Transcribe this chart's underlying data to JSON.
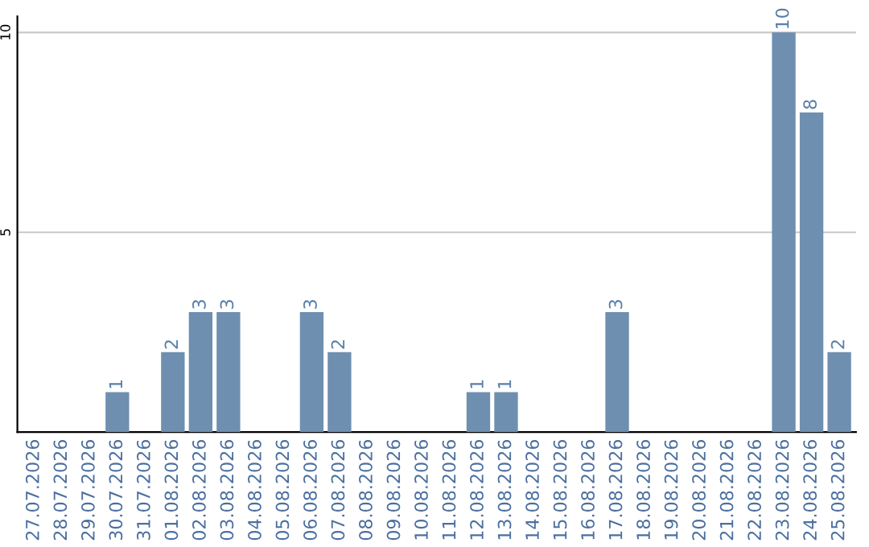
{
  "chart_data": {
    "type": "bar",
    "categories": [
      "27.07.2026",
      "28.07.2026",
      "29.07.2026",
      "30.07.2026",
      "31.07.2026",
      "01.08.2026",
      "02.08.2026",
      "03.08.2026",
      "04.08.2026",
      "05.08.2026",
      "06.08.2026",
      "07.08.2026",
      "08.08.2026",
      "09.08.2026",
      "10.08.2026",
      "11.08.2026",
      "12.08.2026",
      "13.08.2026",
      "14.08.2026",
      "15.08.2026",
      "16.08.2026",
      "17.08.2026",
      "18.08.2026",
      "19.08.2026",
      "20.08.2026",
      "21.08.2026",
      "22.08.2026",
      "23.08.2026",
      "24.08.2026",
      "25.08.2026"
    ],
    "values": [
      0,
      0,
      0,
      1,
      0,
      2,
      3,
      3,
      0,
      0,
      3,
      2,
      0,
      0,
      0,
      0,
      1,
      1,
      0,
      0,
      0,
      3,
      0,
      0,
      0,
      0,
      0,
      10,
      8,
      2
    ],
    "value_labels": [
      null,
      null,
      null,
      "1",
      null,
      "2",
      "3",
      "3",
      null,
      null,
      "3",
      "2",
      null,
      null,
      null,
      null,
      "1",
      "1",
      null,
      null,
      null,
      "3",
      null,
      null,
      null,
      null,
      null,
      "10",
      "8",
      "2"
    ],
    "color": "#6e8fb0",
    "ylim": [
      0,
      10.4
    ],
    "yticks": [
      5,
      10
    ],
    "grid": "y"
  }
}
